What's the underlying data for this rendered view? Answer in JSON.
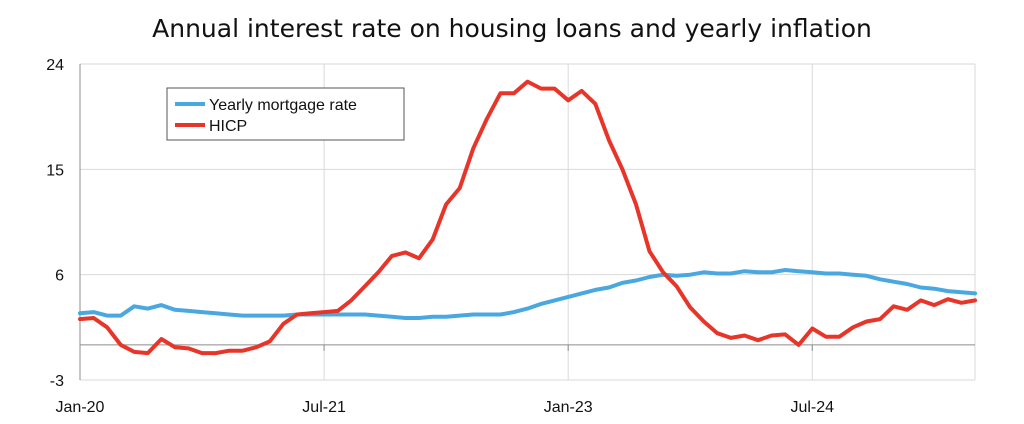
{
  "chart_data": {
    "type": "line",
    "title": "Annual interest rate on housing loans and yearly inflation",
    "xlabel": "",
    "ylabel": "",
    "ylim": [
      -3,
      24
    ],
    "yticks": [
      "24",
      "15",
      "6",
      "-3"
    ],
    "ytick_values": [
      24,
      15,
      6,
      -3
    ],
    "xticks": [
      "Jan-20",
      "Jul-21",
      "Jan-23",
      "Jul-24"
    ],
    "xtick_values": [
      "2020-01",
      "2021-07",
      "2023-01",
      "2024-07"
    ],
    "x_range": [
      "2020-01",
      "2025-07"
    ],
    "grid": true,
    "legend_position": "top-left",
    "series": [
      {
        "name": "Yearly mortgage rate",
        "color": "#4aa8e0",
        "points": [
          [
            "2020-01",
            2.7
          ],
          [
            "2020-02",
            2.8
          ],
          [
            "2020-03",
            2.5
          ],
          [
            "2020-04",
            2.5
          ],
          [
            "2020-05",
            3.3
          ],
          [
            "2020-06",
            3.1
          ],
          [
            "2020-07",
            3.4
          ],
          [
            "2020-08",
            3.0
          ],
          [
            "2020-09",
            2.9
          ],
          [
            "2020-10",
            2.8
          ],
          [
            "2020-11",
            2.7
          ],
          [
            "2020-12",
            2.6
          ],
          [
            "2021-01",
            2.5
          ],
          [
            "2021-02",
            2.5
          ],
          [
            "2021-03",
            2.5
          ],
          [
            "2021-04",
            2.5
          ],
          [
            "2021-05",
            2.6
          ],
          [
            "2021-06",
            2.6
          ],
          [
            "2021-07",
            2.6
          ],
          [
            "2021-08",
            2.6
          ],
          [
            "2021-09",
            2.6
          ],
          [
            "2021-10",
            2.6
          ],
          [
            "2021-11",
            2.5
          ],
          [
            "2021-12",
            2.4
          ],
          [
            "2022-01",
            2.3
          ],
          [
            "2022-02",
            2.3
          ],
          [
            "2022-03",
            2.4
          ],
          [
            "2022-04",
            2.4
          ],
          [
            "2022-05",
            2.5
          ],
          [
            "2022-06",
            2.6
          ],
          [
            "2022-07",
            2.6
          ],
          [
            "2022-08",
            2.6
          ],
          [
            "2022-09",
            2.8
          ],
          [
            "2022-10",
            3.1
          ],
          [
            "2022-11",
            3.5
          ],
          [
            "2022-12",
            3.8
          ],
          [
            "2023-01",
            4.1
          ],
          [
            "2023-02",
            4.4
          ],
          [
            "2023-03",
            4.7
          ],
          [
            "2023-04",
            4.9
          ],
          [
            "2023-05",
            5.3
          ],
          [
            "2023-06",
            5.5
          ],
          [
            "2023-07",
            5.8
          ],
          [
            "2023-08",
            6.0
          ],
          [
            "2023-09",
            5.9
          ],
          [
            "2023-10",
            6.0
          ],
          [
            "2023-11",
            6.2
          ],
          [
            "2023-12",
            6.1
          ],
          [
            "2024-01",
            6.1
          ],
          [
            "2024-02",
            6.3
          ],
          [
            "2024-03",
            6.2
          ],
          [
            "2024-04",
            6.2
          ],
          [
            "2024-05",
            6.4
          ],
          [
            "2024-06",
            6.3
          ],
          [
            "2024-07",
            6.2
          ],
          [
            "2024-08",
            6.1
          ],
          [
            "2024-09",
            6.1
          ],
          [
            "2024-10",
            6.0
          ],
          [
            "2024-11",
            5.9
          ],
          [
            "2024-12",
            5.6
          ],
          [
            "2025-01",
            5.4
          ],
          [
            "2025-02",
            5.2
          ],
          [
            "2025-03",
            4.9
          ],
          [
            "2025-04",
            4.8
          ],
          [
            "2025-05",
            4.6
          ],
          [
            "2025-06",
            4.5
          ],
          [
            "2025-07",
            4.4
          ]
        ]
      },
      {
        "name": "HICP",
        "color": "#e8352a",
        "points": [
          [
            "2020-01",
            2.2
          ],
          [
            "2020-02",
            2.3
          ],
          [
            "2020-03",
            1.5
          ],
          [
            "2020-04",
            0.0
          ],
          [
            "2020-05",
            -0.6
          ],
          [
            "2020-06",
            -0.7
          ],
          [
            "2020-07",
            0.5
          ],
          [
            "2020-08",
            -0.2
          ],
          [
            "2020-09",
            -0.3
          ],
          [
            "2020-10",
            -0.7
          ],
          [
            "2020-11",
            -0.7
          ],
          [
            "2020-12",
            -0.5
          ],
          [
            "2021-01",
            -0.5
          ],
          [
            "2021-02",
            -0.2
          ],
          [
            "2021-03",
            0.3
          ],
          [
            "2021-04",
            1.8
          ],
          [
            "2021-05",
            2.6
          ],
          [
            "2021-06",
            2.7
          ],
          [
            "2021-07",
            2.8
          ],
          [
            "2021-08",
            2.9
          ],
          [
            "2021-09",
            3.8
          ],
          [
            "2021-10",
            5.0
          ],
          [
            "2021-11",
            6.2
          ],
          [
            "2021-12",
            7.6
          ],
          [
            "2022-01",
            7.9
          ],
          [
            "2022-02",
            7.4
          ],
          [
            "2022-03",
            9.0
          ],
          [
            "2022-04",
            12.0
          ],
          [
            "2022-05",
            13.4
          ],
          [
            "2022-06",
            16.8
          ],
          [
            "2022-07",
            19.3
          ],
          [
            "2022-08",
            21.5
          ],
          [
            "2022-09",
            21.5
          ],
          [
            "2022-10",
            22.5
          ],
          [
            "2022-11",
            21.9
          ],
          [
            "2022-12",
            21.9
          ],
          [
            "2023-01",
            20.9
          ],
          [
            "2023-02",
            21.7
          ],
          [
            "2023-03",
            20.6
          ],
          [
            "2023-04",
            17.5
          ],
          [
            "2023-05",
            15.0
          ],
          [
            "2023-06",
            12.0
          ],
          [
            "2023-07",
            8.0
          ],
          [
            "2023-08",
            6.2
          ],
          [
            "2023-09",
            5.0
          ],
          [
            "2023-10",
            3.2
          ],
          [
            "2023-11",
            2.0
          ],
          [
            "2023-12",
            1.0
          ],
          [
            "2024-01",
            0.6
          ],
          [
            "2024-02",
            0.8
          ],
          [
            "2024-03",
            0.4
          ],
          [
            "2024-04",
            0.8
          ],
          [
            "2024-05",
            0.9
          ],
          [
            "2024-06",
            0.0
          ],
          [
            "2024-07",
            1.4
          ],
          [
            "2024-08",
            0.7
          ],
          [
            "2024-09",
            0.7
          ],
          [
            "2024-10",
            1.5
          ],
          [
            "2024-11",
            2.0
          ],
          [
            "2024-12",
            2.2
          ],
          [
            "2025-01",
            3.3
          ],
          [
            "2025-02",
            3.0
          ],
          [
            "2025-03",
            3.8
          ],
          [
            "2025-04",
            3.4
          ],
          [
            "2025-05",
            3.9
          ],
          [
            "2025-06",
            3.6
          ],
          [
            "2025-07",
            3.8
          ]
        ]
      }
    ]
  }
}
